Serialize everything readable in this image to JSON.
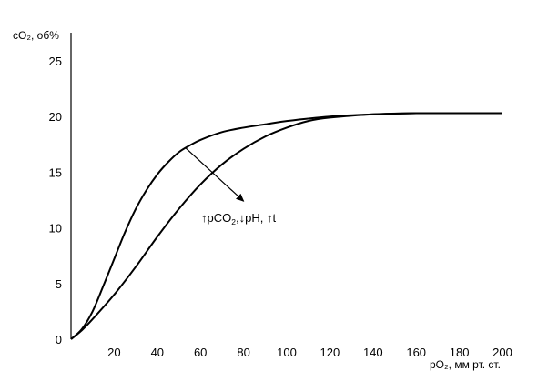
{
  "chart_data": {
    "type": "line",
    "ylabel": "cO₂, об%",
    "xlabel": "pO₂, мм рт. ст.",
    "xlim": [
      0,
      200
    ],
    "ylim": [
      0,
      25
    ],
    "x_ticks": [
      "20",
      "40",
      "60",
      "80",
      "100",
      "120",
      "140",
      "160",
      "180",
      "200"
    ],
    "y_ticks": [
      "0",
      "5",
      "10",
      "15",
      "20",
      "25"
    ],
    "grid": false,
    "series": [
      {
        "x": [
          0,
          5,
          10,
          15,
          20,
          25,
          30,
          35,
          40,
          45,
          50,
          55,
          60,
          70,
          80,
          90,
          100,
          120,
          140,
          160,
          180,
          200
        ],
        "y": [
          0,
          0.9,
          2.5,
          4.8,
          7.2,
          9.6,
          11.7,
          13.4,
          14.8,
          15.9,
          16.8,
          17.4,
          17.9,
          18.6,
          19.0,
          19.3,
          19.6,
          20.0,
          20.2,
          20.3,
          20.3,
          20.3
        ],
        "color": "#000000"
      },
      {
        "x": [
          0,
          5,
          10,
          20,
          30,
          40,
          50,
          60,
          70,
          80,
          90,
          100,
          110,
          120,
          140,
          160,
          180,
          200
        ],
        "y": [
          0,
          0.8,
          1.8,
          4.0,
          6.5,
          9.2,
          11.7,
          13.9,
          15.7,
          17.1,
          18.2,
          19.0,
          19.6,
          19.9,
          20.2,
          20.3,
          20.3,
          20.3
        ],
        "color": "#000000"
      }
    ],
    "annotation": {
      "text_up1": "↑",
      "text_p": "pCO",
      "text_sub": "2",
      "text_down": ",↓",
      "text_ph": "pH, ",
      "text_up2": "↑",
      "text_t": "t",
      "arrow_from": [
        53,
        17.2
      ],
      "arrow_to": [
        80,
        12.4
      ]
    }
  }
}
